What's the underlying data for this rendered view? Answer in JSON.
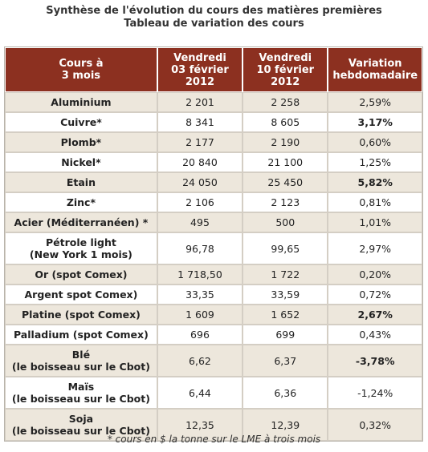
{
  "title": "Synthèse de l'évolution du cours des matières premières",
  "subtitle": "Tableau de variation des cours",
  "headers": [
    {
      "line1": "Cours à",
      "line2": "3 mois",
      "line3": ""
    },
    {
      "line1": "Vendredi",
      "line2": "03 février",
      "line3": "2012"
    },
    {
      "line1": "Vendredi",
      "line2": "10 février",
      "line3": "2012"
    },
    {
      "line1": "Variation",
      "line2": "hebdomadaire",
      "line3": ""
    }
  ],
  "rows": [
    {
      "name": [
        "Aluminium"
      ],
      "v1": "2 201",
      "v2": "2 258",
      "var": "2,59%",
      "bold": false,
      "shaded": true
    },
    {
      "name": [
        "Cuivre*"
      ],
      "v1": "8 341",
      "v2": "8 605",
      "var": "3,17%",
      "bold": true,
      "shaded": false
    },
    {
      "name": [
        "Plomb*"
      ],
      "v1": "2 177",
      "v2": "2 190",
      "var": "0,60%",
      "bold": false,
      "shaded": true
    },
    {
      "name": [
        "Nickel*"
      ],
      "v1": "20 840",
      "v2": "21 100",
      "var": "1,25%",
      "bold": false,
      "shaded": false
    },
    {
      "name": [
        "Etain"
      ],
      "v1": "24 050",
      "v2": "25 450",
      "var": "5,82%",
      "bold": true,
      "shaded": true
    },
    {
      "name": [
        "Zinc*"
      ],
      "v1": "2 106",
      "v2": "2 123",
      "var": "0,81%",
      "bold": false,
      "shaded": false
    },
    {
      "name": [
        "Acier (Méditerranéen) *"
      ],
      "v1": "495",
      "v2": "500",
      "var": "1,01%",
      "bold": false,
      "shaded": true
    },
    {
      "name": [
        "Pétrole light",
        "(New York 1 mois)"
      ],
      "v1": "96,78",
      "v2": "99,65",
      "var": "2,97%",
      "bold": false,
      "shaded": false
    },
    {
      "name": [
        "Or (spot Comex)"
      ],
      "v1": "1 718,50",
      "v2": "1 722",
      "var": "0,20%",
      "bold": false,
      "shaded": true
    },
    {
      "name": [
        "Argent spot Comex)"
      ],
      "v1": "33,35",
      "v2": "33,59",
      "var": "0,72%",
      "bold": false,
      "shaded": false
    },
    {
      "name": [
        "Platine (spot Comex)"
      ],
      "v1": "1 609",
      "v2": "1 652",
      "var": "2,67%",
      "bold": true,
      "shaded": true
    },
    {
      "name": [
        "Palladium (spot Comex)"
      ],
      "v1": "696",
      "v2": "699",
      "var": "0,43%",
      "bold": false,
      "shaded": false
    },
    {
      "name": [
        "Blé",
        "(le boisseau sur le Cbot)"
      ],
      "v1": "6,62",
      "v2": "6,37",
      "var": "-3,78%",
      "bold": true,
      "shaded": true
    },
    {
      "name": [
        "Maïs",
        "(le boisseau sur le Cbot)"
      ],
      "v1": "6,44",
      "v2": "6,36",
      "var": "-1,24%",
      "bold": false,
      "shaded": false
    },
    {
      "name": [
        "Soja",
        "(le boisseau sur le Cbot)"
      ],
      "v1": "12,35",
      "v2": "12,39",
      "var": "0,32%",
      "bold": false,
      "shaded": true
    }
  ],
  "footnote": "* cours en $ la tonne sur le LME à trois mois",
  "colors": {
    "header_bg": "#8c3020",
    "header_text": "#ffffff",
    "shaded_row": "#ede7dc",
    "border": "#d4cec4"
  }
}
